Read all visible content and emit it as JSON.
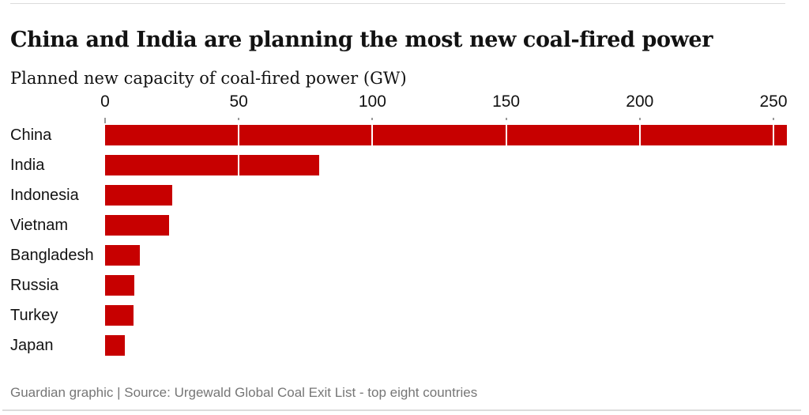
{
  "header": {
    "title": "China and India are planning the most new coal-fired power",
    "subtitle": "Planned new capacity of coal-fired power (GW)"
  },
  "chart_data": {
    "type": "bar",
    "orientation": "horizontal",
    "title": "China and India are planning the most new coal-fired power",
    "xlabel": "Planned new capacity of coal-fired power (GW)",
    "ylabel": "",
    "unit": "GW",
    "categories": [
      "China",
      "India",
      "Indonesia",
      "Vietnam",
      "Bangladesh",
      "Russia",
      "Turkey",
      "Japan"
    ],
    "values": [
      255,
      80,
      25,
      24,
      13,
      11,
      10.5,
      7.5
    ],
    "xlim": [
      0,
      250
    ],
    "x_ticks": [
      0,
      50,
      100,
      150,
      200,
      250
    ],
    "legend": "none",
    "grid": "white vertical gridlines overlaying bars at each x tick"
  },
  "footer": {
    "source": "Guardian graphic | Source: Urgewald Global Coal Exit List - top eight countries"
  },
  "colors": {
    "bar_red": "#c70000",
    "text_dark": "#121212",
    "muted_gray": "#767676",
    "rule_gray": "#dcdcdc",
    "tick_gray": "#999999",
    "gridline_white": "#ffffff"
  }
}
